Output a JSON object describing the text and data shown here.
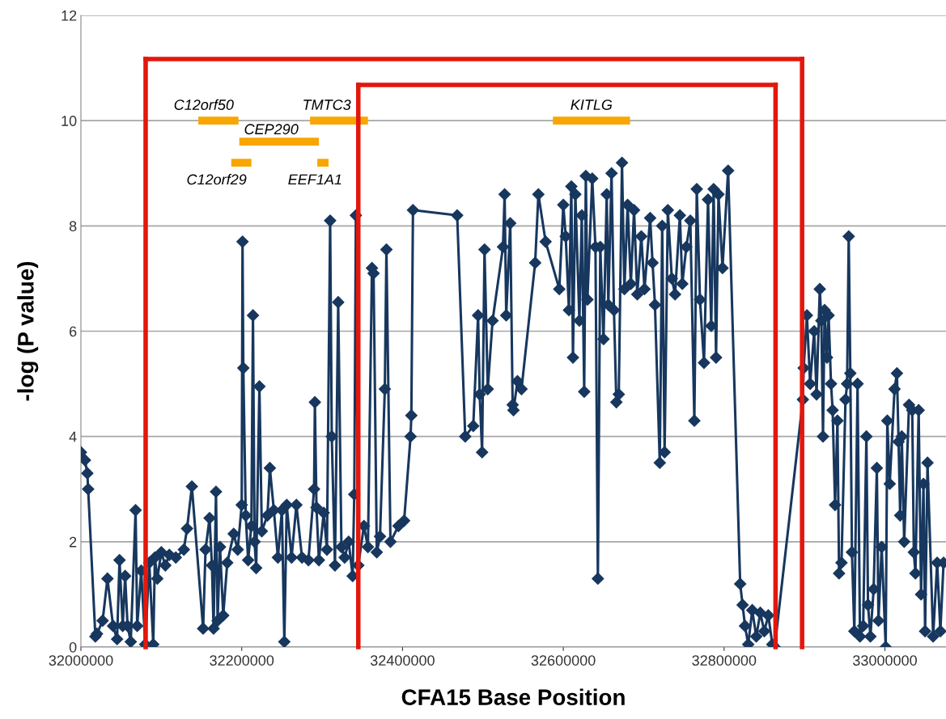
{
  "chart_data": {
    "type": "line",
    "xlabel": "CFA15 Base Position",
    "ylabel": "-log (P value)",
    "xlim": [
      32000000,
      33076000
    ],
    "xticks": [
      32000000,
      32200000,
      32400000,
      32600000,
      32800000,
      33000000
    ],
    "ylim": [
      0,
      12
    ],
    "yticks": [
      0,
      2,
      4,
      6,
      8,
      10,
      12
    ],
    "grid": "y",
    "marker": "diamond",
    "line_style": "solid",
    "ref_lines": [
      {
        "axis": "x",
        "value": 32080500,
        "color": "#e3170d"
      },
      {
        "axis": "x",
        "value": 32345000,
        "color": "#e3170d"
      },
      {
        "axis": "x",
        "value": 32864000,
        "color": "#e3170d"
      },
      {
        "axis": "x",
        "value": 32897000,
        "color": "#e3170d"
      },
      {
        "axis": "y",
        "value": 11.17,
        "color": "#e3170d"
      },
      {
        "axis": "y",
        "value": 10.68,
        "color": "#e3170d"
      }
    ],
    "series": [
      {
        "name": "C12orf50",
        "marker": "none",
        "color": "#f9a602",
        "x": [
          32146000,
          32196000
        ],
        "values": [
          10.0,
          10.0
        ]
      },
      {
        "name": "TMTC3",
        "marker": "none",
        "color": "#f9a602",
        "x": [
          32285000,
          32357000
        ],
        "values": [
          10.0,
          10.0
        ]
      },
      {
        "name": "CEP290",
        "marker": "none",
        "color": "#f9a602",
        "x": [
          32197000,
          32296000
        ],
        "values": [
          9.6,
          9.6
        ]
      },
      {
        "name": "C12orf29",
        "marker": "none",
        "color": "#f9a602",
        "x": [
          32187000,
          32212000
        ],
        "values": [
          9.2,
          9.2
        ]
      },
      {
        "name": "EEF1A1",
        "marker": "none",
        "color": "#f9a602",
        "x": [
          32294000,
          32308000
        ],
        "values": [
          9.2,
          9.2
        ]
      },
      {
        "name": "KITLG",
        "marker": "none",
        "color": "#f9a602",
        "x": [
          32587000,
          32683000
        ],
        "values": [
          10.0,
          10.0
        ]
      },
      {
        "color": "#17375e",
        "x": [
          32000000,
          32005000,
          32008000,
          32009000,
          32018000,
          32020000,
          32027000,
          32033000,
          32040000,
          32045000,
          32048000,
          32052000,
          32055000,
          32058000,
          32062000,
          32068000,
          32070000,
          32075000,
          32080000,
          32085000,
          32090000,
          32092000,
          32095000,
          32100000,
          32105000,
          32110000,
          32118000,
          32128000,
          32132000,
          32138000,
          32152000,
          32155000,
          32160000,
          32163000,
          32165000,
          32168000,
          32170000,
          32173000,
          32177000,
          32182000,
          32190000,
          32195000,
          32200000,
          32201000,
          32202000,
          32205000,
          32208000,
          32212000,
          32214000,
          32216000,
          32218000,
          32222000,
          32225000,
          32232000,
          32235000,
          32240000,
          32245000,
          32250000,
          32253000,
          32256000,
          32262000,
          32268000,
          32275000,
          32283000,
          32290000,
          32291000,
          32293000,
          32296000,
          32302000,
          32306000,
          32310000,
          32312000,
          32316000,
          32320000,
          32324000,
          32328000,
          32333000,
          32338000,
          32340000,
          32342000,
          32345000,
          32352000,
          32357000,
          32362000,
          32364000,
          32368000,
          32372000,
          32378000,
          32380000,
          32385000,
          32395000,
          32402000,
          32410000,
          32411000,
          32413000,
          32468000,
          32478000,
          32488000,
          32494000,
          32496000,
          32499000,
          32502000,
          32506000,
          32512000,
          32525000,
          32527000,
          32529000,
          32534000,
          32537000,
          32538000,
          32543000,
          32548000,
          32565000,
          32569000,
          32578000,
          32595000,
          32600000,
          32603000,
          32607000,
          32610000,
          32612000,
          32615000,
          32620000,
          32623000,
          32626000,
          32628000,
          32630000,
          32636000,
          32640000,
          32643000,
          32646000,
          32650000,
          32654000,
          32656000,
          32660000,
          32663000,
          32666000,
          32669000,
          32673000,
          32676000,
          32680000,
          32684000,
          32688000,
          32692000,
          32697000,
          32701000,
          32708000,
          32711000,
          32714000,
          32720000,
          32723000,
          32726000,
          32730000,
          32735000,
          32739000,
          32745000,
          32748000,
          32753000,
          32758000,
          32763000,
          32766000,
          32770000,
          32775000,
          32780000,
          32784000,
          32787000,
          32790000,
          32793000,
          32798000,
          32805000,
          32820000,
          32823000,
          32826000,
          32830000,
          32835000,
          32840000,
          32845000,
          32850000,
          32855000,
          32860000,
          32863000,
          32898000,
          32899000,
          32903000,
          32907000,
          32912000,
          32915000,
          32919000,
          32921000,
          32923000,
          32925000,
          32928000,
          32930000,
          32933000,
          32935000,
          32938000,
          32941000,
          32943000,
          32946000,
          32951000,
          32953000,
          32955000,
          32957000,
          32959000,
          32962000,
          32966000,
          32969000,
          32973000,
          32977000,
          32979000,
          32982000,
          32986000,
          32990000,
          32992000,
          32996000,
          33001000,
          33003000,
          33006000,
          33012000,
          33015000,
          33017000,
          33019000,
          33021000,
          33024000,
          33030000,
          33034000,
          33036000,
          33038000,
          33042000,
          33045000,
          33048000,
          33050000,
          33053000,
          33060000,
          33065000,
          33069000,
          33073000
        ],
        "values": [
          3.7,
          3.55,
          3.3,
          3.0,
          0.2,
          0.25,
          0.5,
          1.3,
          0.4,
          0.15,
          1.65,
          0.4,
          1.35,
          0.4,
          0.1,
          2.6,
          0.4,
          1.45,
          0.05,
          1.6,
          0.05,
          1.7,
          1.3,
          1.8,
          1.55,
          1.75,
          1.7,
          1.85,
          2.25,
          3.05,
          0.35,
          1.85,
          2.45,
          1.55,
          0.35,
          2.95,
          0.5,
          1.9,
          0.6,
          1.6,
          2.15,
          1.85,
          2.7,
          7.7,
          5.3,
          2.5,
          1.65,
          2.3,
          6.3,
          2.0,
          1.5,
          4.95,
          2.2,
          2.5,
          3.4,
          2.6,
          1.7,
          2.6,
          0.1,
          2.7,
          1.7,
          2.7,
          1.7,
          1.65,
          3.0,
          4.65,
          2.65,
          1.65,
          2.55,
          1.85,
          8.1,
          4.0,
          1.55,
          6.55,
          1.9,
          1.7,
          2.0,
          1.35,
          2.9,
          8.2,
          1.55,
          2.3,
          1.9,
          7.2,
          7.1,
          1.8,
          2.1,
          4.9,
          7.55,
          2.0,
          2.3,
          2.4,
          4.0,
          4.4,
          8.3,
          8.2,
          4.0,
          4.2,
          6.3,
          4.8,
          3.7,
          7.55,
          4.9,
          6.2,
          7.6,
          8.6,
          6.3,
          8.05,
          4.6,
          4.5,
          5.05,
          4.9,
          7.3,
          8.6,
          7.7,
          6.8,
          8.4,
          7.8,
          6.4,
          8.75,
          5.5,
          8.6,
          6.2,
          8.2,
          4.85,
          8.95,
          6.6,
          8.9,
          7.6,
          1.3,
          7.6,
          5.85,
          8.6,
          6.5,
          9.0,
          6.4,
          4.65,
          4.8,
          9.2,
          6.8,
          8.4,
          6.9,
          8.3,
          6.7,
          7.8,
          6.8,
          8.15,
          7.3,
          6.5,
          3.5,
          8.0,
          3.7,
          8.3,
          7.0,
          6.7,
          8.2,
          6.9,
          7.6,
          8.1,
          4.3,
          8.7,
          6.6,
          5.4,
          8.5,
          6.1,
          8.7,
          5.5,
          8.6,
          7.2,
          9.05,
          1.2,
          0.8,
          0.4,
          0.05,
          0.7,
          0.2,
          0.65,
          0.3,
          0.6,
          0.05,
          0.0,
          4.7,
          5.3,
          6.3,
          5.0,
          6.0,
          4.8,
          6.8,
          6.2,
          4.0,
          6.4,
          5.5,
          6.3,
          5.0,
          4.5,
          2.7,
          4.3,
          1.4,
          1.6,
          4.7,
          5.0,
          7.8,
          5.2,
          1.8,
          0.3,
          5.0,
          0.2,
          0.4,
          4.0,
          0.8,
          0.2,
          1.1,
          3.4,
          0.5,
          1.9,
          0.0,
          4.3,
          3.1,
          4.9,
          5.2,
          3.9,
          2.5,
          4.0,
          2.0,
          4.6,
          4.5,
          1.8,
          1.4,
          4.5,
          1.0,
          3.1,
          0.3,
          3.5,
          0.2,
          1.6,
          0.3,
          1.6
        ]
      }
    ]
  }
}
